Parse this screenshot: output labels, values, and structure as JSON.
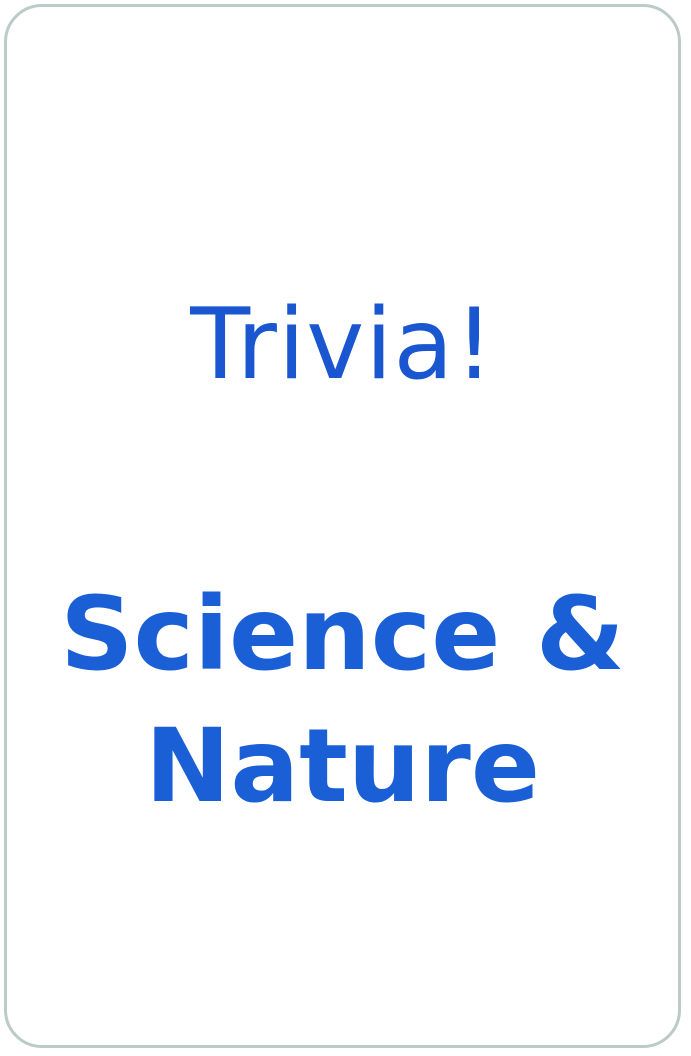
{
  "card": {
    "title": "Trivia!",
    "category_line1": "Science &",
    "category_line2": "Nature"
  },
  "colors": {
    "title_text": "#1a56cf",
    "category_text": "#1a5fd6",
    "card_border": "#bccaca",
    "card_background": "#ffffff"
  }
}
